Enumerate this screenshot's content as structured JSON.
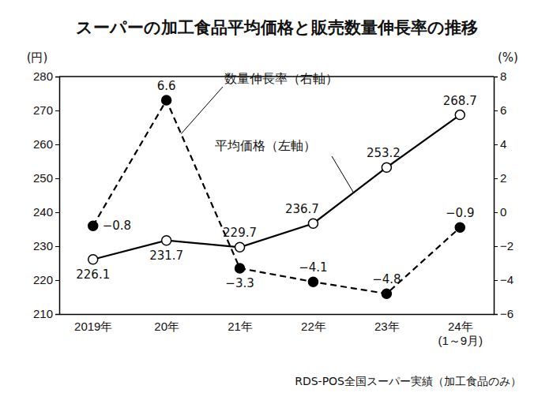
{
  "chart_data": {
    "type": "line",
    "title": "スーパーの加工食品平均価格と販売数量伸長率の推移",
    "categories": [
      "2019年",
      "20年",
      "21年",
      "22年",
      "23年",
      "24年\n(1～9月)"
    ],
    "y_label": "(円)",
    "y2_label": "(%)",
    "ylim": [
      210,
      280
    ],
    "yticks": [
      210,
      220,
      230,
      240,
      250,
      260,
      270,
      280
    ],
    "y2lim": [
      -6,
      8
    ],
    "y2ticks": [
      {
        "value": -6,
        "label": "−6"
      },
      {
        "value": -4,
        "label": "−4"
      },
      {
        "value": -2,
        "label": "−2"
      },
      0,
      2,
      4,
      6,
      8
    ],
    "data_labels": true,
    "series": [
      {
        "name": "平均価格（左軸）",
        "color": "#000000",
        "marker": "hollow-circle",
        "line_style": "solid",
        "values": [
          226.1,
          231.7,
          229.7,
          236.7,
          253.2,
          268.7
        ]
      },
      {
        "name": "数量伸長率（右軸）",
        "color": "#000000",
        "marker": "circle",
        "line_style": "dashed",
        "axis": "y2",
        "values": [
          -0.8,
          6.6,
          -3.3,
          -4.1,
          -4.8,
          -0.9
        ],
        "value_labels": [
          "−0.8",
          "6.6",
          "−3.3",
          "−4.1",
          "−4.8",
          "−0.9"
        ]
      }
    ],
    "source": "RDS-POS全国スーパー実績（加工食品のみ）"
  }
}
